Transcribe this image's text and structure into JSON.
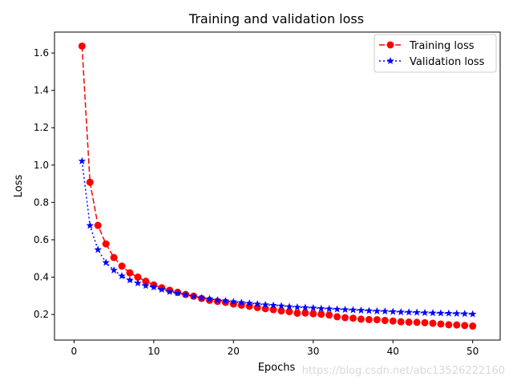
{
  "chart_data": {
    "type": "line",
    "title": "Training and validation loss",
    "xlabel": "Epochs",
    "ylabel": "Loss",
    "xlim": [
      -2.45,
      53.45
    ],
    "ylim": [
      0.063,
      1.712
    ],
    "xticks": [
      0,
      10,
      20,
      30,
      40,
      50
    ],
    "yticks": [
      0.2,
      0.4,
      0.6,
      0.8,
      1.0,
      1.2,
      1.4,
      1.6
    ],
    "legend_position": "upper right",
    "grid": false,
    "x": [
      1,
      2,
      3,
      4,
      5,
      6,
      7,
      8,
      9,
      10,
      11,
      12,
      13,
      14,
      15,
      16,
      17,
      18,
      19,
      20,
      21,
      22,
      23,
      24,
      25,
      26,
      27,
      28,
      29,
      30,
      31,
      32,
      33,
      34,
      35,
      36,
      37,
      38,
      39,
      40,
      41,
      42,
      43,
      44,
      45,
      46,
      47,
      48,
      49,
      50
    ],
    "series": [
      {
        "name": "Training loss",
        "color": "#ff0000",
        "linestyle": "dashed",
        "marker": "circle",
        "values": [
          1.637,
          0.908,
          0.677,
          0.578,
          0.505,
          0.459,
          0.423,
          0.4,
          0.378,
          0.358,
          0.343,
          0.33,
          0.319,
          0.307,
          0.298,
          0.286,
          0.276,
          0.27,
          0.265,
          0.256,
          0.25,
          0.244,
          0.237,
          0.231,
          0.226,
          0.219,
          0.215,
          0.207,
          0.208,
          0.204,
          0.201,
          0.197,
          0.188,
          0.183,
          0.18,
          0.175,
          0.173,
          0.172,
          0.168,
          0.165,
          0.161,
          0.159,
          0.158,
          0.156,
          0.153,
          0.149,
          0.145,
          0.144,
          0.141,
          0.138
        ]
      },
      {
        "name": "Validation loss",
        "color": "#0000ff",
        "linestyle": "dotted",
        "marker": "star",
        "values": [
          1.021,
          0.676,
          0.547,
          0.478,
          0.437,
          0.406,
          0.384,
          0.368,
          0.354,
          0.346,
          0.334,
          0.322,
          0.314,
          0.307,
          0.298,
          0.289,
          0.284,
          0.277,
          0.273,
          0.268,
          0.264,
          0.26,
          0.256,
          0.252,
          0.249,
          0.246,
          0.242,
          0.239,
          0.237,
          0.235,
          0.232,
          0.23,
          0.228,
          0.226,
          0.224,
          0.222,
          0.22,
          0.218,
          0.217,
          0.215,
          0.213,
          0.212,
          0.211,
          0.209,
          0.208,
          0.207,
          0.206,
          0.205,
          0.204,
          0.202
        ]
      }
    ]
  },
  "watermark": "https://blog.csdn.net/abc13526222160"
}
